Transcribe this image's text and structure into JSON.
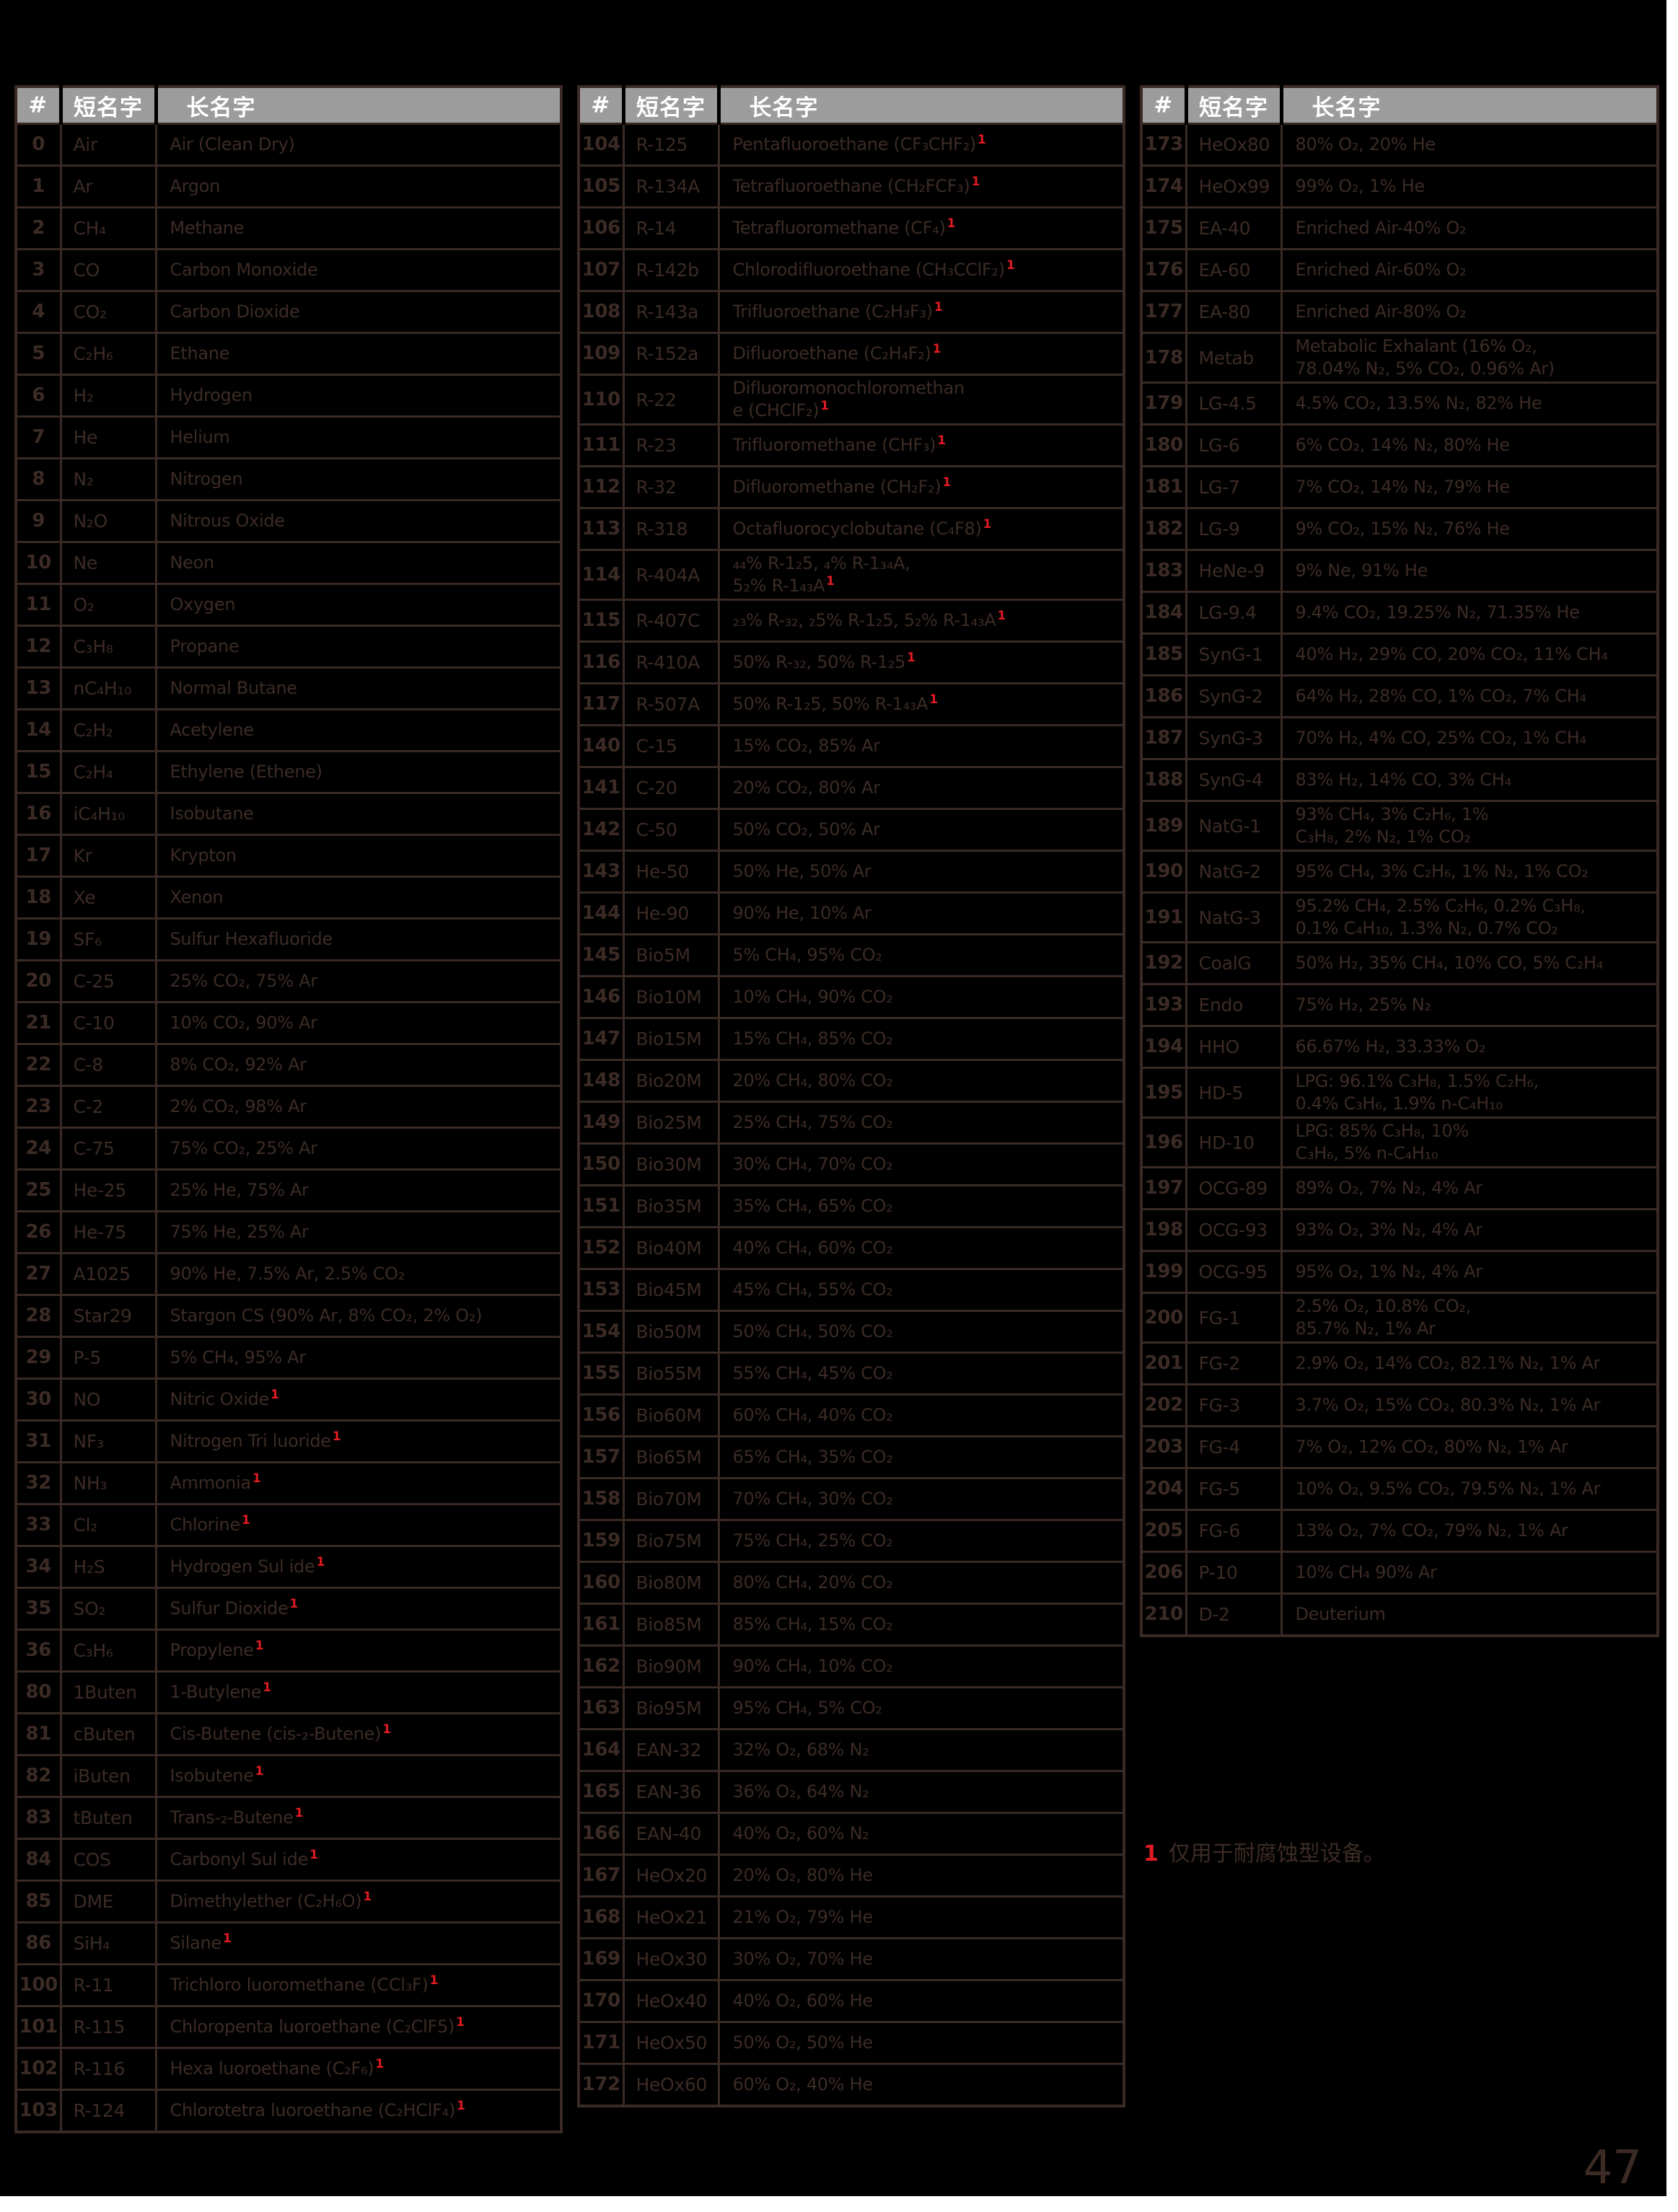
{
  "page": {
    "number": "47"
  },
  "colors": {
    "background": "#000000",
    "text": "#3c2b25",
    "header_bar": "#9c9c9c",
    "header_text": "#ffffff",
    "footnote_red": "#e01b22"
  },
  "header": {
    "num": "#",
    "short": "短名字",
    "long": "长名字"
  },
  "footnote": {
    "marker": "1",
    "text": "仅用于耐腐蚀型设备。"
  },
  "tables": [
    {
      "rows": [
        {
          "num": "0",
          "short": "Air",
          "long": "Air (Clean Dry)"
        },
        {
          "num": "1",
          "short": "Ar",
          "long": "Argon"
        },
        {
          "num": "2",
          "short": "CH₄",
          "long": "Methane"
        },
        {
          "num": "3",
          "short": "CO",
          "long": "Carbon Monoxide"
        },
        {
          "num": "4",
          "short": "CO₂",
          "long": "Carbon Dioxide"
        },
        {
          "num": "5",
          "short": "C₂H₆",
          "long": "Ethane"
        },
        {
          "num": "6",
          "short": "H₂",
          "long": "Hydrogen"
        },
        {
          "num": "7",
          "short": "He",
          "long": "Helium"
        },
        {
          "num": "8",
          "short": "N₂",
          "long": "Nitrogen"
        },
        {
          "num": "9",
          "short": "N₂O",
          "long": "Nitrous Oxide"
        },
        {
          "num": "10",
          "short": "Ne",
          "long": "Neon"
        },
        {
          "num": "11",
          "short": "O₂",
          "long": "Oxygen"
        },
        {
          "num": "12",
          "short": "C₃H₈",
          "long": "Propane"
        },
        {
          "num": "13",
          "short": "nC₄H₁₀",
          "long": "Normal Butane"
        },
        {
          "num": "14",
          "short": "C₂H₂",
          "long": "Acetylene"
        },
        {
          "num": "15",
          "short": "C₂H₄",
          "long": "Ethylene (Ethene)"
        },
        {
          "num": "16",
          "short": "iC₄H₁₀",
          "long": "Isobutane"
        },
        {
          "num": "17",
          "short": "Kr",
          "long": "Krypton"
        },
        {
          "num": "18",
          "short": "Xe",
          "long": "Xenon"
        },
        {
          "num": "19",
          "short": "SF₆",
          "long": "Sulfur Hexafluoride"
        },
        {
          "num": "20",
          "short": "C-25",
          "long": "25% CO₂, 75% Ar"
        },
        {
          "num": "21",
          "short": "C-10",
          "long": "10% CO₂, 90% Ar"
        },
        {
          "num": "22",
          "short": "C-8",
          "long": "8% CO₂, 92% Ar"
        },
        {
          "num": "23",
          "short": "C-2",
          "long": "2% CO₂, 98% Ar"
        },
        {
          "num": "24",
          "short": "C-75",
          "long": "75% CO₂, 25% Ar"
        },
        {
          "num": "25",
          "short": "He-25",
          "long": "25% He, 75% Ar"
        },
        {
          "num": "26",
          "short": "He-75",
          "long": "75% He, 25% Ar"
        },
        {
          "num": "27",
          "short": "A1025",
          "long": "90% He, 7.5% Ar, 2.5% CO₂"
        },
        {
          "num": "28",
          "short": "Star29",
          "long": "Stargon CS (90% Ar, 8% CO₂, 2% O₂)"
        },
        {
          "num": "29",
          "short": "P-5",
          "long": "5% CH₄, 95% Ar"
        },
        {
          "num": "30",
          "short": "NO",
          "long": "Nitric Oxide",
          "sup": true
        },
        {
          "num": "31",
          "short": "NF₃",
          "long": "Nitrogen Tri luoride",
          "sup": true
        },
        {
          "num": "32",
          "short": "NH₃",
          "long": "Ammonia",
          "sup": true
        },
        {
          "num": "33",
          "short": "Cl₂",
          "long": "Chlorine",
          "sup": true
        },
        {
          "num": "34",
          "short": "H₂S",
          "long": "Hydrogen Sul ide",
          "sup": true
        },
        {
          "num": "35",
          "short": "SO₂",
          "long": "Sulfur Dioxide",
          "sup": true
        },
        {
          "num": "36",
          "short": "C₃H₆",
          "long": "Propylene",
          "sup": true
        },
        {
          "num": "80",
          "short": "1Buten",
          "long": "1-Butylene",
          "sup": true
        },
        {
          "num": "81",
          "short": "cButen",
          "long": "Cis-Butene (cis-₂-Butene)",
          "sup": true
        },
        {
          "num": "82",
          "short": "iButen",
          "long": "Isobutene",
          "sup": true
        },
        {
          "num": "83",
          "short": "tButen",
          "long": "Trans-₂-Butene",
          "sup": true
        },
        {
          "num": "84",
          "short": "COS",
          "long": "Carbonyl Sul ide",
          "sup": true
        },
        {
          "num": "85",
          "short": "DME",
          "long": "Dimethylether (C₂H₆O)",
          "sup": true
        },
        {
          "num": "86",
          "short": "SiH₄",
          "long": "Silane",
          "sup": true
        },
        {
          "num": "100",
          "short": "R-11",
          "long": "Trichloro luoromethane (CCl₃F)",
          "sup": true
        },
        {
          "num": "101",
          "short": "R-115",
          "long": "Chloropenta luoroethane (C₂ClF5)",
          "sup": true
        },
        {
          "num": "102",
          "short": "R-116",
          "long": "Hexa luoroethane (C₂F₆)",
          "sup": true
        },
        {
          "num": "103",
          "short": "R-124",
          "long": "Chlorotetra luoroethane (C₂HClF₄)",
          "sup": true
        }
      ]
    },
    {
      "rows": [
        {
          "num": "104",
          "short": "R-125",
          "long": "Pentafluoroethane (CF₃CHF₂)",
          "sup": true
        },
        {
          "num": "105",
          "short": "R-134A",
          "long": "Tetrafluoroethane (CH₂FCF₃)",
          "sup": true
        },
        {
          "num": "106",
          "short": "R-14",
          "long": "Tetrafluoromethane (CF₄)",
          "sup": true
        },
        {
          "num": "107",
          "short": "R-142b",
          "long": "Chlorodifluoroethane (CH₃CClF₂)",
          "sup": true
        },
        {
          "num": "108",
          "short": "R-143a",
          "long": "Trifluoroethane (C₂H₃F₃)",
          "sup": true
        },
        {
          "num": "109",
          "short": "R-152a",
          "long": "Difluoroethane (C₂H₄F₂)",
          "sup": true
        },
        {
          "num": "110",
          "short": "R-22",
          "long": "Difluoromonochloromethan\ne (CHClF₂)",
          "sup": true
        },
        {
          "num": "111",
          "short": "R-23",
          "long": "Trifluoromethane (CHF₃)",
          "sup": true
        },
        {
          "num": "112",
          "short": "R-32",
          "long": "Difluoromethane (CH₂F₂)",
          "sup": true
        },
        {
          "num": "113",
          "short": "R-318",
          "long": "Octafluorocyclobutane (C₄F8)",
          "sup": true
        },
        {
          "num": "114",
          "short": "R-404A",
          "long": "₄₄% R-1₂5, ₄% R-1₃₄A,\n5₂% R-1₄₃A",
          "sup": true
        },
        {
          "num": "115",
          "short": "R-407C",
          "long": "₂₃% R-₃₂, ₂5% R-1₂5, 5₂% R-1₄₃A",
          "sup": true
        },
        {
          "num": "116",
          "short": "R-410A",
          "long": "50% R-₃₂, 50% R-1₂5",
          "sup": true
        },
        {
          "num": "117",
          "short": "R-507A",
          "long": "50% R-1₂5, 50% R-1₄₃A",
          "sup": true
        },
        {
          "num": "140",
          "short": "C-15",
          "long": "15% CO₂, 85% Ar"
        },
        {
          "num": "141",
          "short": "C-20",
          "long": "20% CO₂, 80% Ar"
        },
        {
          "num": "142",
          "short": "C-50",
          "long": "50% CO₂, 50% Ar"
        },
        {
          "num": "143",
          "short": "He-50",
          "long": "50% He, 50% Ar"
        },
        {
          "num": "144",
          "short": "He-90",
          "long": "90% He, 10% Ar"
        },
        {
          "num": "145",
          "short": "Bio5M",
          "long": "5% CH₄, 95% CO₂"
        },
        {
          "num": "146",
          "short": "Bio10M",
          "long": "10% CH₄, 90% CO₂"
        },
        {
          "num": "147",
          "short": "Bio15M",
          "long": "15% CH₄, 85% CO₂"
        },
        {
          "num": "148",
          "short": "Bio20M",
          "long": "20% CH₄, 80% CO₂"
        },
        {
          "num": "149",
          "short": "Bio25M",
          "long": "25% CH₄, 75% CO₂"
        },
        {
          "num": "150",
          "short": "Bio30M",
          "long": "30% CH₄, 70% CO₂"
        },
        {
          "num": "151",
          "short": "Bio35M",
          "long": "35% CH₄, 65% CO₂"
        },
        {
          "num": "152",
          "short": "Bio40M",
          "long": "40% CH₄, 60% CO₂"
        },
        {
          "num": "153",
          "short": "Bio45M",
          "long": "45% CH₄, 55% CO₂"
        },
        {
          "num": "154",
          "short": "Bio50M",
          "long": "50% CH₄, 50% CO₂"
        },
        {
          "num": "155",
          "short": "Bio55M",
          "long": "55% CH₄, 45% CO₂"
        },
        {
          "num": "156",
          "short": "Bio60M",
          "long": "60% CH₄, 40% CO₂"
        },
        {
          "num": "157",
          "short": "Bio65M",
          "long": "65% CH₄, 35% CO₂"
        },
        {
          "num": "158",
          "short": "Bio70M",
          "long": "70% CH₄, 30% CO₂"
        },
        {
          "num": "159",
          "short": "Bio75M",
          "long": "75% CH₄, 25% CO₂"
        },
        {
          "num": "160",
          "short": "Bio80M",
          "long": "80% CH₄, 20% CO₂"
        },
        {
          "num": "161",
          "short": "Bio85M",
          "long": "85% CH₄, 15% CO₂"
        },
        {
          "num": "162",
          "short": "Bio90M",
          "long": "90% CH₄, 10% CO₂"
        },
        {
          "num": "163",
          "short": "Bio95M",
          "long": "95% CH₄, 5% CO₂"
        },
        {
          "num": "164",
          "short": "EAN-32",
          "long": "32% O₂, 68% N₂"
        },
        {
          "num": "165",
          "short": "EAN-36",
          "long": "36% O₂, 64% N₂"
        },
        {
          "num": "166",
          "short": "EAN-40",
          "long": "40% O₂, 60% N₂"
        },
        {
          "num": "167",
          "short": "HeOx20",
          "long": "20% O₂, 80% He"
        },
        {
          "num": "168",
          "short": "HeOx21",
          "long": "21% O₂, 79% He"
        },
        {
          "num": "169",
          "short": "HeOx30",
          "long": "30% O₂, 70% He"
        },
        {
          "num": "170",
          "short": "HeOx40",
          "long": "40% O₂, 60% He"
        },
        {
          "num": "171",
          "short": "HeOx50",
          "long": "50% O₂, 50% He"
        },
        {
          "num": "172",
          "short": "HeOx60",
          "long": "60% O₂, 40% He"
        }
      ]
    },
    {
      "rows": [
        {
          "num": "173",
          "short": "HeOx80",
          "long": "80% O₂, 20% He"
        },
        {
          "num": "174",
          "short": "HeOx99",
          "long": "99% O₂, 1% He"
        },
        {
          "num": "175",
          "short": "EA-40",
          "long": "Enriched Air-40% O₂"
        },
        {
          "num": "176",
          "short": "EA-60",
          "long": "Enriched Air-60% O₂"
        },
        {
          "num": "177",
          "short": "EA-80",
          "long": "Enriched Air-80% O₂"
        },
        {
          "num": "178",
          "short": "Metab",
          "long": "Metabolic Exhalant (16% O₂,\n78.04% N₂, 5% CO₂, 0.96% Ar)"
        },
        {
          "num": "179",
          "short": "LG-4.5",
          "long": "4.5% CO₂, 13.5% N₂, 82% He"
        },
        {
          "num": "180",
          "short": "LG-6",
          "long": "6% CO₂, 14% N₂, 80% He"
        },
        {
          "num": "181",
          "short": "LG-7",
          "long": "7% CO₂, 14% N₂, 79% He"
        },
        {
          "num": "182",
          "short": "LG-9",
          "long": "9% CO₂, 15% N₂, 76% He"
        },
        {
          "num": "183",
          "short": "HeNe-9",
          "long": "9% Ne, 91% He"
        },
        {
          "num": "184",
          "short": "LG-9.4",
          "long": "9.4% CO₂, 19.25% N₂, 71.35% He"
        },
        {
          "num": "185",
          "short": "SynG-1",
          "long": "40% H₂, 29% CO, 20% CO₂, 11% CH₄"
        },
        {
          "num": "186",
          "short": "SynG-2",
          "long": "64% H₂, 28% CO, 1% CO₂, 7% CH₄"
        },
        {
          "num": "187",
          "short": "SynG-3",
          "long": "70% H₂, 4% CO, 25% CO₂, 1% CH₄"
        },
        {
          "num": "188",
          "short": "SynG-4",
          "long": "83% H₂, 14% CO, 3% CH₄"
        },
        {
          "num": "189",
          "short": "NatG-1",
          "long": "93% CH₄, 3% C₂H₆, 1%\nC₃H₈, 2% N₂, 1% CO₂"
        },
        {
          "num": "190",
          "short": "NatG-2",
          "long": "95% CH₄, 3% C₂H₆, 1% N₂, 1% CO₂"
        },
        {
          "num": "191",
          "short": "NatG-3",
          "long": "95.2% CH₄, 2.5% C₂H₆, 0.2% C₃H₈,\n0.1% C₄H₁₀, 1.3% N₂, 0.7% CO₂"
        },
        {
          "num": "192",
          "short": "CoalG",
          "long": "50% H₂, 35% CH₄, 10% CO, 5% C₂H₄"
        },
        {
          "num": "193",
          "short": "Endo",
          "long": "75% H₂, 25% N₂"
        },
        {
          "num": "194",
          "short": "HHO",
          "long": "66.67% H₂, 33.33% O₂"
        },
        {
          "num": "195",
          "short": "HD-5",
          "long": "LPG: 96.1% C₃H₈, 1.5% C₂H₆,\n0.4% C₃H₆, 1.9% n-C₄H₁₀"
        },
        {
          "num": "196",
          "short": "HD-10",
          "long": "LPG: 85% C₃H₈, 10%\nC₃H₆, 5% n-C₄H₁₀"
        },
        {
          "num": "197",
          "short": "OCG-89",
          "long": "89% O₂, 7% N₂, 4% Ar"
        },
        {
          "num": "198",
          "short": "OCG-93",
          "long": "93% O₂, 3% N₂, 4% Ar"
        },
        {
          "num": "199",
          "short": "OCG-95",
          "long": "95% O₂, 1% N₂, 4% Ar"
        },
        {
          "num": "200",
          "short": "FG-1",
          "long": "2.5% O₂, 10.8% CO₂,\n85.7% N₂, 1% Ar"
        },
        {
          "num": "201",
          "short": "FG-2",
          "long": "2.9% O₂, 14% CO₂, 82.1% N₂, 1% Ar"
        },
        {
          "num": "202",
          "short": "FG-3",
          "long": "3.7% O₂, 15% CO₂, 80.3% N₂, 1% Ar"
        },
        {
          "num": "203",
          "short": "FG-4",
          "long": "7% O₂, 12% CO₂, 80% N₂, 1% Ar"
        },
        {
          "num": "204",
          "short": "FG-5",
          "long": "10% O₂, 9.5% CO₂, 79.5% N₂, 1% Ar"
        },
        {
          "num": "205",
          "short": "FG-6",
          "long": "13% O₂, 7% CO₂, 79% N₂, 1% Ar"
        },
        {
          "num": "206",
          "short": "P-10",
          "long": "10% CH₄ 90% Ar"
        },
        {
          "num": "210",
          "short": "D-2",
          "long": "Deuterium"
        }
      ]
    }
  ]
}
